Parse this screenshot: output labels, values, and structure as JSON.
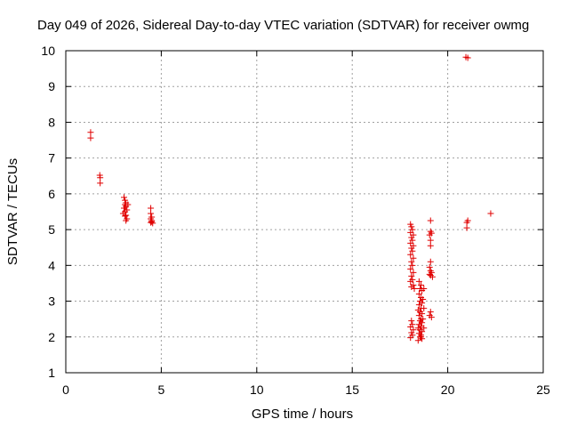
{
  "chart_data": {
    "type": "scatter",
    "title": "Day 049 of 2026, Sidereal Day-to-day VTEC variation (SDTVAR) for receiver owmg",
    "xlabel": "GPS time / hours",
    "ylabel": "SDTVAR / TECUs",
    "xlim": [
      0,
      25
    ],
    "ylim": [
      1,
      10
    ],
    "xticks": [
      "0",
      "5",
      "10",
      "15",
      "20",
      "25"
    ],
    "yticks": [
      "1",
      "2",
      "3",
      "4",
      "5",
      "6",
      "7",
      "8",
      "9",
      "10"
    ],
    "grid": true,
    "marker": "+",
    "color": "#e00000",
    "series": [
      {
        "name": "SDTVAR",
        "points": [
          [
            1.3,
            7.72
          ],
          [
            1.3,
            7.56
          ],
          [
            1.78,
            6.52
          ],
          [
            1.8,
            6.45
          ],
          [
            1.8,
            6.3
          ],
          [
            3.05,
            5.9
          ],
          [
            3.1,
            5.82
          ],
          [
            3.15,
            5.75
          ],
          [
            3.1,
            5.7
          ],
          [
            3.15,
            5.65
          ],
          [
            3.05,
            5.6
          ],
          [
            3.2,
            5.55
          ],
          [
            3.1,
            5.5
          ],
          [
            3.0,
            5.45
          ],
          [
            3.15,
            5.4
          ],
          [
            3.1,
            5.38
          ],
          [
            3.2,
            5.3
          ],
          [
            3.15,
            5.25
          ],
          [
            3.25,
            5.7
          ],
          [
            4.45,
            5.6
          ],
          [
            4.45,
            5.45
          ],
          [
            4.5,
            5.35
          ],
          [
            4.45,
            5.3
          ],
          [
            4.5,
            5.25
          ],
          [
            4.5,
            5.22
          ],
          [
            4.45,
            5.2
          ],
          [
            4.55,
            5.18
          ],
          [
            18.05,
            5.15
          ],
          [
            18.1,
            5.08
          ],
          [
            18.15,
            5.0
          ],
          [
            18.05,
            4.92
          ],
          [
            18.2,
            4.85
          ],
          [
            18.1,
            4.78
          ],
          [
            18.15,
            4.7
          ],
          [
            18.05,
            4.62
          ],
          [
            18.2,
            4.55
          ],
          [
            18.1,
            4.48
          ],
          [
            18.15,
            4.4
          ],
          [
            18.05,
            4.3
          ],
          [
            18.2,
            4.2
          ],
          [
            18.1,
            4.1
          ],
          [
            18.15,
            4.0
          ],
          [
            18.05,
            3.9
          ],
          [
            18.2,
            3.8
          ],
          [
            18.1,
            3.7
          ],
          [
            18.15,
            3.6
          ],
          [
            18.05,
            3.55
          ],
          [
            18.2,
            3.45
          ],
          [
            18.1,
            3.4
          ],
          [
            18.25,
            3.35
          ],
          [
            18.1,
            2.45
          ],
          [
            18.15,
            2.35
          ],
          [
            18.05,
            2.28
          ],
          [
            18.2,
            2.2
          ],
          [
            18.1,
            2.12
          ],
          [
            18.15,
            2.05
          ],
          [
            18.05,
            1.98
          ],
          [
            18.5,
            3.55
          ],
          [
            18.6,
            3.45
          ],
          [
            18.55,
            3.35
          ],
          [
            18.65,
            3.3
          ],
          [
            18.5,
            3.2
          ],
          [
            18.6,
            3.1
          ],
          [
            18.55,
            3.0
          ],
          [
            18.65,
            2.95
          ],
          [
            18.5,
            2.9
          ],
          [
            18.6,
            2.8
          ],
          [
            18.45,
            2.75
          ],
          [
            18.55,
            2.7
          ],
          [
            18.65,
            2.65
          ],
          [
            18.5,
            2.6
          ],
          [
            18.6,
            2.5
          ],
          [
            18.55,
            2.45
          ],
          [
            18.65,
            2.4
          ],
          [
            18.5,
            2.35
          ],
          [
            18.6,
            2.3
          ],
          [
            18.45,
            2.25
          ],
          [
            18.55,
            2.2
          ],
          [
            18.65,
            2.15
          ],
          [
            18.5,
            2.1
          ],
          [
            18.6,
            2.05
          ],
          [
            18.55,
            2.0
          ],
          [
            18.65,
            1.95
          ],
          [
            18.45,
            1.9
          ],
          [
            18.6,
            2.0
          ],
          [
            18.75,
            3.35
          ],
          [
            18.7,
            3.05
          ],
          [
            18.75,
            2.8
          ],
          [
            18.7,
            2.5
          ],
          [
            18.75,
            2.25
          ],
          [
            19.1,
            5.25
          ],
          [
            19.1,
            4.95
          ],
          [
            19.15,
            4.9
          ],
          [
            19.05,
            4.85
          ],
          [
            19.1,
            4.7
          ],
          [
            19.1,
            4.55
          ],
          [
            19.1,
            4.1
          ],
          [
            19.05,
            3.95
          ],
          [
            19.1,
            3.85
          ],
          [
            19.15,
            3.8
          ],
          [
            19.05,
            3.75
          ],
          [
            19.1,
            3.72
          ],
          [
            19.2,
            3.68
          ],
          [
            19.1,
            2.7
          ],
          [
            19.05,
            2.6
          ],
          [
            19.15,
            2.55
          ],
          [
            20.95,
            9.82
          ],
          [
            21.05,
            9.8
          ],
          [
            21.0,
            5.2
          ],
          [
            21.0,
            5.05
          ],
          [
            21.05,
            5.25
          ],
          [
            22.25,
            5.45
          ]
        ]
      }
    ]
  }
}
